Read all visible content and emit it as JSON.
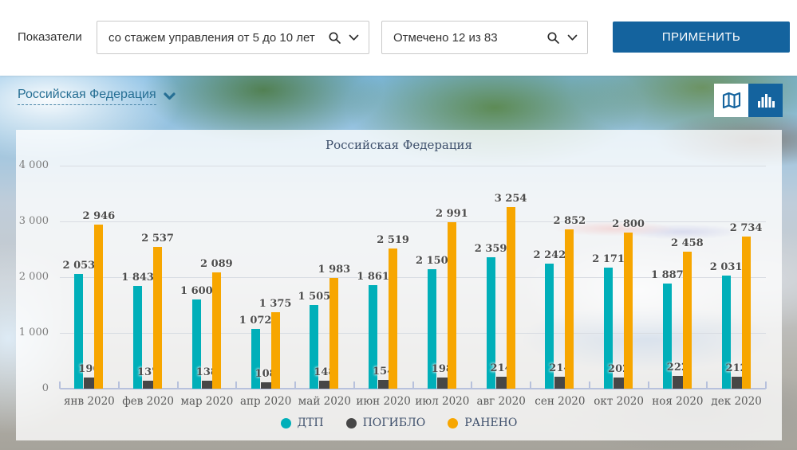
{
  "header": {
    "indicators_label": "Показатели",
    "indicator_filter": {
      "value": "со стажем управления от 5 до 10 лет"
    },
    "checked_filter": {
      "value": "Отмечено 12 из 83"
    },
    "apply_label": "ПРИМЕНИТЬ"
  },
  "region": {
    "name": "Российская Федерация"
  },
  "view_toggle": {
    "active": "chart"
  },
  "colors": {
    "accent_blue": "#14639e",
    "link_blue": "#266f94",
    "dtp_teal": "#00afb9",
    "died_gray": "#474747",
    "injured_orange": "#f7a600"
  },
  "chart_data": {
    "type": "bar",
    "title": "Российская Федерация",
    "categories": [
      "янв 2020",
      "фев 2020",
      "мар 2020",
      "апр 2020",
      "май 2020",
      "июн 2020",
      "июл 2020",
      "авг 2020",
      "сен 2020",
      "окт 2020",
      "ноя 2020",
      "дек 2020"
    ],
    "series": [
      {
        "name": "ДТП",
        "color": "#00afb9",
        "values": [
          2053,
          1843,
          1600,
          1072,
          1505,
          1861,
          2150,
          2359,
          2242,
          2171,
          1887,
          2031
        ]
      },
      {
        "name": "ПОГИБЛО",
        "color": "#474747",
        "values": [
          196,
          137,
          138,
          108,
          148,
          154,
          198,
          214,
          214,
          202,
          222,
          212
        ]
      },
      {
        "name": "РАНЕНО",
        "color": "#f7a600",
        "values": [
          2946,
          2537,
          2089,
          1375,
          1983,
          2519,
          2991,
          3254,
          2852,
          2800,
          2458,
          2734
        ]
      }
    ],
    "ylim": [
      0,
      4000
    ],
    "yticks": [
      0,
      1000,
      2000,
      3000,
      4000
    ],
    "ytick_labels": [
      "0",
      "1 000",
      "2 000",
      "3 000",
      "4 000"
    ],
    "grid": true,
    "legend_position": "bottom"
  }
}
